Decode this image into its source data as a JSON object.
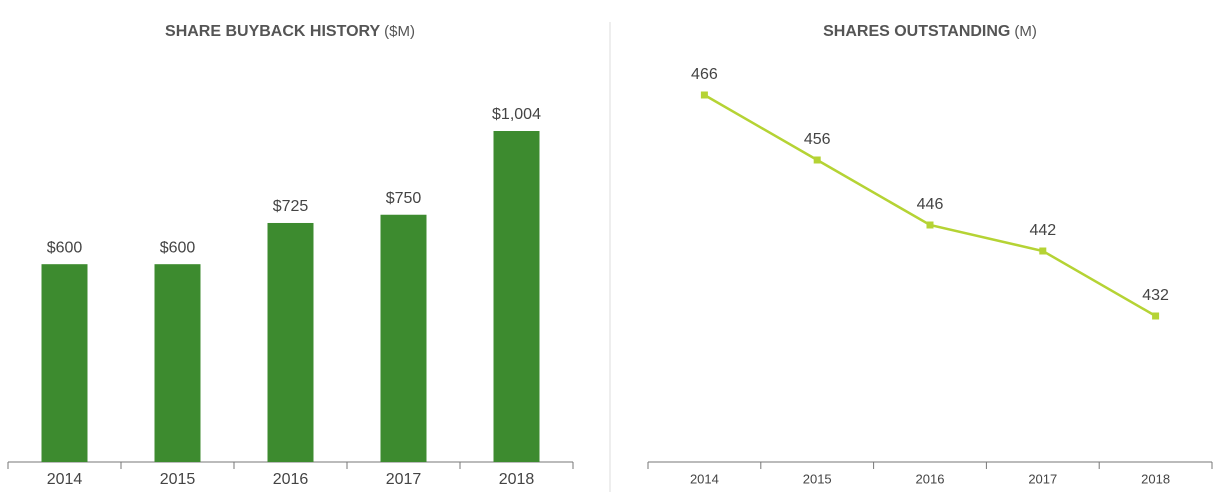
{
  "chart_data": [
    {
      "type": "bar",
      "title": "SHARE BUYBACK HISTORY",
      "unit": "($M)",
      "categories": [
        "2014",
        "2015",
        "2016",
        "2017",
        "2018"
      ],
      "values": [
        600,
        600,
        725,
        750,
        1004
      ],
      "value_labels": [
        "$600",
        "$600",
        "$725",
        "$750",
        "$1,004"
      ],
      "color": "#3d8b2f"
    },
    {
      "type": "line",
      "title": "SHARES OUTSTANDING",
      "unit": "(M)",
      "categories": [
        "2014",
        "2015",
        "2016",
        "2017",
        "2018"
      ],
      "values": [
        466,
        456,
        446,
        442,
        432
      ],
      "color": "#b5d334"
    }
  ]
}
